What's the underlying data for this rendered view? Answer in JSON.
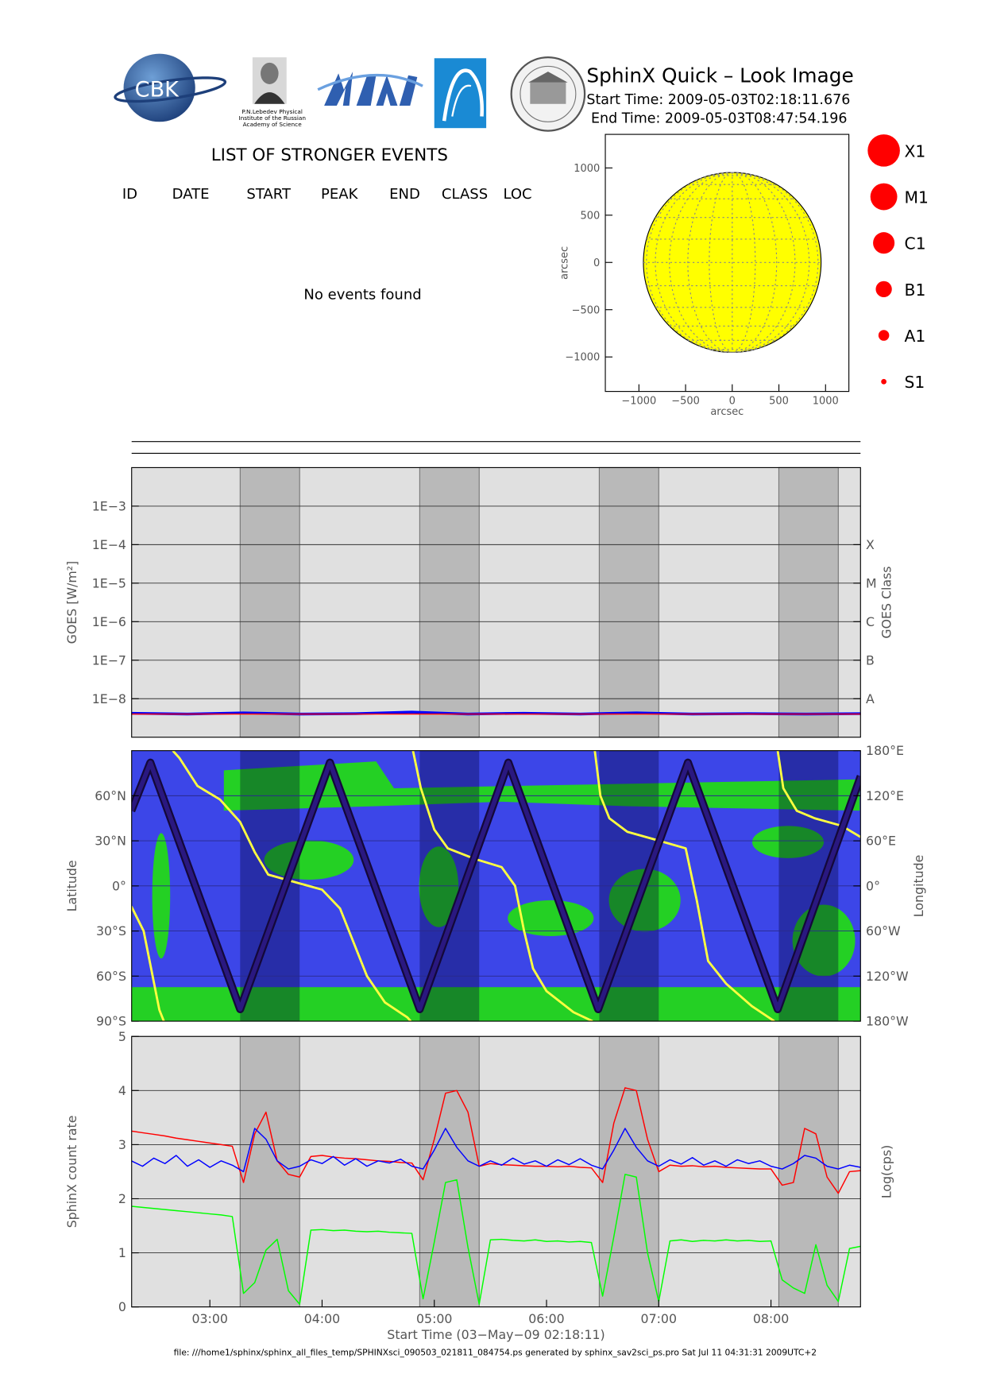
{
  "header": {
    "title": "SphinX Quick – Look Image",
    "start_time": "Start Time: 2009-05-03T02:18:11.676",
    "end_time": "End Time: 2009-05-03T08:47:54.196",
    "logo_text": "CBK",
    "institute_caption": [
      "P.N.Lebedev Physical",
      "Institute of the Russian",
      "Academy of Science"
    ]
  },
  "events": {
    "title": "LIST OF STRONGER EVENTS",
    "columns": [
      "ID",
      "DATE",
      "START",
      "PEAK",
      "END",
      "CLASS",
      "LOC"
    ],
    "message": "No events found"
  },
  "class_legend": [
    "X1",
    "M1",
    "C1",
    "B1",
    "A1",
    "S1"
  ],
  "footer": "file: ///home1/sphinx/sphinx_all_files_temp/SPHINXsci_090503_021811_084754.ps generated by sphinx_sav2sci_ps.pro Sat Jul 11 04:31:31 2009UTC+2",
  "chart_data": [
    {
      "type": "disk",
      "xlabel": "arcsec",
      "ylabel": "arcsec",
      "xlim": [
        -1360,
        1250
      ],
      "ylim": [
        -1365,
        1355
      ],
      "xticks": [
        {
          "value": -1000,
          "label": "−1000"
        },
        {
          "value": -500,
          "label": "−500"
        },
        0,
        500,
        1000
      ],
      "yticks": [
        {
          "value": -1000,
          "label": "−1000"
        },
        {
          "value": -500,
          "label": "−500"
        },
        0,
        500,
        1000
      ],
      "center": [
        0,
        0
      ],
      "radius": 952,
      "color": "#ffff00"
    },
    {
      "type": "line",
      "ylabel": "GOES [W/m²]",
      "y2label": "GOES Class",
      "log_y": true,
      "grid": true,
      "xlim": [
        2.303,
        8.798
      ],
      "ylim": [
        1e-09,
        0.01
      ],
      "y2lim": [
        1e-09,
        0.01
      ],
      "yticks": [
        {
          "value": 0.001,
          "label": "1E−3"
        },
        {
          "value": 0.0001,
          "label": "1E−4"
        },
        {
          "value": 1e-05,
          "label": "1E−5"
        },
        {
          "value": 1e-06,
          "label": "1E−6"
        },
        {
          "value": 1e-07,
          "label": "1E−7"
        },
        {
          "value": 1e-08,
          "label": "1E−8"
        }
      ],
      "y2ticks": [
        {
          "value": 0.0001,
          "label": "X"
        },
        {
          "value": 1e-05,
          "label": "M"
        },
        {
          "value": 1e-06,
          "label": "C"
        },
        {
          "value": 1e-07,
          "label": "B"
        },
        {
          "value": 1e-08,
          "label": "A"
        }
      ],
      "shaded": [
        [
          3.27,
          3.8
        ],
        [
          4.87,
          5.4
        ],
        [
          6.47,
          7.0
        ],
        [
          8.07,
          8.6
        ]
      ],
      "x": [
        2.3,
        2.8,
        3.3,
        3.8,
        4.3,
        4.8,
        5.3,
        5.8,
        6.3,
        6.8,
        7.3,
        7.8,
        8.3,
        8.8
      ],
      "series": [
        {
          "color": "#0000ff",
          "values": [
            4.2e-09,
            4e-09,
            4.3e-09,
            4e-09,
            4.1e-09,
            4.5e-09,
            4e-09,
            4.2e-09,
            4e-09,
            4.3e-09,
            4e-09,
            4.1e-09,
            4e-09,
            4.1e-09
          ]
        },
        {
          "color": "#ff0000",
          "values": [
            4e-09,
            4e-09,
            4e-09,
            4e-09,
            4e-09,
            4e-09,
            4e-09,
            4e-09,
            4e-09,
            4e-09,
            4e-09,
            4e-09,
            4e-09,
            4e-09
          ]
        }
      ]
    },
    {
      "type": "track",
      "ylabel": "Latitude",
      "y2label": "Longitude",
      "grid": true,
      "xlim": [
        2.303,
        8.798
      ],
      "ylim": [
        -90,
        90
      ],
      "y2lim": [
        -180,
        180
      ],
      "yticks": [
        {
          "value": -90,
          "label": "90°S"
        },
        {
          "value": -60,
          "label": "60°S"
        },
        {
          "value": -30,
          "label": "30°S"
        },
        {
          "value": 0,
          "label": "0°"
        },
        {
          "value": 30,
          "label": "30°N"
        },
        {
          "value": 60,
          "label": "60°N"
        }
      ],
      "y2ticks": [
        {
          "value": -180,
          "label": "180°W"
        },
        {
          "value": -120,
          "label": "120°W"
        },
        {
          "value": -60,
          "label": "60°W"
        },
        {
          "value": 0,
          "label": "0°"
        },
        {
          "value": 60,
          "label": "60°E"
        },
        {
          "value": 120,
          "label": "120°E"
        },
        {
          "value": 180,
          "label": "180°E"
        }
      ],
      "shaded": [
        [
          3.27,
          3.8
        ],
        [
          4.87,
          5.4
        ],
        [
          6.47,
          7.0
        ],
        [
          8.07,
          8.6
        ]
      ],
      "series": [
        {
          "color": "#ffff40",
          "axis": "y2",
          "x": [
            2.3,
            2.41,
            2.49,
            2.55,
            2.59,
            null,
            2.67,
            2.73,
            2.89,
            3.09,
            3.27,
            3.4,
            3.52,
            3.76,
            4.0,
            4.16,
            4.28,
            4.4,
            4.56,
            4.76,
            4.79,
            null,
            4.81,
            4.88,
            5.0,
            5.12,
            5.36,
            5.6,
            5.72,
            5.8,
            5.88,
            6.0,
            6.24,
            6.41,
            null,
            6.43,
            6.48,
            6.56,
            6.72,
            6.96,
            7.24,
            7.34,
            7.44,
            7.6,
            7.83,
            8.03,
            null,
            8.06,
            8.11,
            8.23,
            8.39,
            8.63,
            8.8
          ],
          "values": [
            -27,
            -60,
            -120,
            -165,
            -180,
            null,
            180,
            170,
            133,
            115,
            85,
            45,
            15,
            5,
            -5,
            -30,
            -75,
            -120,
            -155,
            -175,
            -180,
            null,
            180,
            130,
            75,
            50,
            36,
            25,
            0,
            -60,
            -110,
            -140,
            -168,
            -180,
            null,
            180,
            120,
            90,
            72,
            62,
            50,
            -20,
            -100,
            -130,
            -160,
            -180,
            null,
            180,
            130,
            100,
            90,
            80,
            65
          ]
        },
        {
          "color": "#2a1880",
          "x": [
            2.3,
            2.47,
            3.27,
            4.07,
            4.87,
            5.66,
            6.46,
            7.26,
            8.06,
            8.8
          ],
          "values": [
            50,
            82,
            -82,
            82,
            -82,
            82,
            -82,
            82,
            -82,
            73
          ]
        }
      ]
    },
    {
      "type": "line",
      "ylabel": "SphinX count rate",
      "y2label": "Log(cps)",
      "xlabel": "Start Time (03−May−09 02:18:11)",
      "grid": true,
      "xlim": [
        2.303,
        8.798
      ],
      "ylim": [
        0,
        5
      ],
      "yticks": [
        0,
        1,
        2,
        3,
        4,
        5
      ],
      "xticks": [
        {
          "value": 3,
          "label": "03:00"
        },
        {
          "value": 4,
          "label": "04:00"
        },
        {
          "value": 5,
          "label": "05:00"
        },
        {
          "value": 6,
          "label": "06:00"
        },
        {
          "value": 7,
          "label": "07:00"
        },
        {
          "value": 8,
          "label": "08:00"
        }
      ],
      "shaded": [
        [
          3.27,
          3.8
        ],
        [
          4.87,
          5.4
        ],
        [
          6.47,
          7.0
        ],
        [
          8.07,
          8.6
        ]
      ],
      "x": [
        2.3,
        2.4,
        2.5,
        2.6,
        2.7,
        2.8,
        2.9,
        3.0,
        3.1,
        3.2,
        3.3,
        3.4,
        3.5,
        3.6,
        3.7,
        3.8,
        3.9,
        4.0,
        4.1,
        4.2,
        4.3,
        4.4,
        4.5,
        4.6,
        4.7,
        4.8,
        4.9,
        5.0,
        5.1,
        5.2,
        5.3,
        5.4,
        5.5,
        5.6,
        5.7,
        5.8,
        5.9,
        6.0,
        6.1,
        6.2,
        6.3,
        6.4,
        6.5,
        6.6,
        6.7,
        6.8,
        6.9,
        7.0,
        7.1,
        7.2,
        7.3,
        7.4,
        7.5,
        7.6,
        7.7,
        7.8,
        7.9,
        8.0,
        8.1,
        8.2,
        8.3,
        8.4,
        8.5,
        8.6,
        8.7,
        8.8
      ],
      "series": [
        {
          "color": "#00ff00",
          "values": [
            1.86,
            1.84,
            1.82,
            1.8,
            1.78,
            1.76,
            1.74,
            1.72,
            1.7,
            1.67,
            0.25,
            0.45,
            1.05,
            1.25,
            0.3,
            0.05,
            1.42,
            1.43,
            1.41,
            1.42,
            1.4,
            1.39,
            1.4,
            1.38,
            1.37,
            1.36,
            0.15,
            1.2,
            2.3,
            2.35,
            1.1,
            0.05,
            1.24,
            1.25,
            1.23,
            1.22,
            1.24,
            1.21,
            1.22,
            1.2,
            1.21,
            1.19,
            0.2,
            1.3,
            2.45,
            2.4,
            1.0,
            0.1,
            1.22,
            1.24,
            1.21,
            1.23,
            1.22,
            1.24,
            1.22,
            1.23,
            1.21,
            1.22,
            0.5,
            0.35,
            0.25,
            1.15,
            0.4,
            0.1,
            1.08,
            1.12
          ]
        },
        {
          "color": "#ff0000",
          "values": [
            3.25,
            3.22,
            3.19,
            3.16,
            3.12,
            3.09,
            3.06,
            3.03,
            3.0,
            2.97,
            2.3,
            3.2,
            3.6,
            2.7,
            2.45,
            2.4,
            2.78,
            2.8,
            2.77,
            2.75,
            2.74,
            2.72,
            2.7,
            2.69,
            2.67,
            2.66,
            2.35,
            3.1,
            3.95,
            4.0,
            3.6,
            2.6,
            2.65,
            2.63,
            2.62,
            2.61,
            2.6,
            2.6,
            2.59,
            2.6,
            2.58,
            2.57,
            2.3,
            3.4,
            4.05,
            4.0,
            3.1,
            2.5,
            2.62,
            2.6,
            2.61,
            2.59,
            2.6,
            2.58,
            2.57,
            2.56,
            2.55,
            2.55,
            2.25,
            2.3,
            3.3,
            3.2,
            2.4,
            2.1,
            2.5,
            2.52
          ]
        },
        {
          "color": "#0000ff",
          "values": [
            2.7,
            2.6,
            2.75,
            2.65,
            2.8,
            2.6,
            2.72,
            2.58,
            2.7,
            2.62,
            2.5,
            3.3,
            3.1,
            2.7,
            2.55,
            2.6,
            2.72,
            2.65,
            2.78,
            2.62,
            2.74,
            2.6,
            2.7,
            2.66,
            2.73,
            2.6,
            2.55,
            2.9,
            3.3,
            2.95,
            2.7,
            2.6,
            2.7,
            2.62,
            2.75,
            2.64,
            2.7,
            2.6,
            2.72,
            2.63,
            2.74,
            2.62,
            2.55,
            2.9,
            3.3,
            2.95,
            2.7,
            2.6,
            2.72,
            2.64,
            2.76,
            2.62,
            2.7,
            2.6,
            2.72,
            2.65,
            2.7,
            2.6,
            2.55,
            2.65,
            2.8,
            2.75,
            2.6,
            2.55,
            2.62,
            2.58
          ]
        }
      ]
    }
  ]
}
